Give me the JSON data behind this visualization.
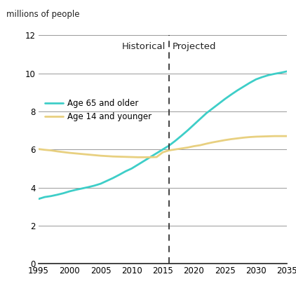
{
  "ylabel": "millions of people",
  "xlim": [
    1995,
    2035
  ],
  "ylim": [
    0,
    12
  ],
  "xticks": [
    1995,
    2000,
    2005,
    2010,
    2015,
    2020,
    2025,
    2030,
    2035
  ],
  "yticks": [
    0,
    2,
    4,
    6,
    8,
    10,
    12
  ],
  "divider_x": 2016,
  "historical_label": "Historical",
  "projected_label": "Projected",
  "line1_label": "Age 65 and older",
  "line1_color": "#3ecec8",
  "line2_label": "Age 14 and younger",
  "line2_color": "#e8d080",
  "line1_x": [
    1995,
    1996,
    1997,
    1998,
    1999,
    2000,
    2001,
    2002,
    2003,
    2004,
    2005,
    2006,
    2007,
    2008,
    2009,
    2010,
    2011,
    2012,
    2013,
    2014,
    2015,
    2016,
    2017,
    2018,
    2019,
    2020,
    2021,
    2022,
    2023,
    2024,
    2025,
    2026,
    2027,
    2028,
    2029,
    2030,
    2031,
    2032,
    2033,
    2034,
    2035
  ],
  "line1_y": [
    3.4,
    3.5,
    3.55,
    3.62,
    3.7,
    3.8,
    3.88,
    3.95,
    4.02,
    4.1,
    4.2,
    4.35,
    4.5,
    4.67,
    4.85,
    5.0,
    5.2,
    5.4,
    5.6,
    5.8,
    6.0,
    6.2,
    6.45,
    6.72,
    7.0,
    7.3,
    7.6,
    7.9,
    8.15,
    8.4,
    8.65,
    8.88,
    9.1,
    9.3,
    9.5,
    9.68,
    9.8,
    9.9,
    9.97,
    10.03,
    10.1
  ],
  "line2_x": [
    1995,
    1996,
    1997,
    1998,
    1999,
    2000,
    2001,
    2002,
    2003,
    2004,
    2005,
    2006,
    2007,
    2008,
    2009,
    2010,
    2011,
    2012,
    2013,
    2014,
    2015,
    2016,
    2017,
    2018,
    2019,
    2020,
    2021,
    2022,
    2023,
    2024,
    2025,
    2026,
    2027,
    2028,
    2029,
    2030,
    2031,
    2032,
    2033,
    2034,
    2035
  ],
  "line2_y": [
    6.02,
    5.98,
    5.95,
    5.9,
    5.86,
    5.82,
    5.79,
    5.76,
    5.73,
    5.7,
    5.67,
    5.65,
    5.63,
    5.62,
    5.61,
    5.6,
    5.59,
    5.59,
    5.59,
    5.6,
    5.85,
    5.95,
    6.0,
    6.05,
    6.1,
    6.17,
    6.22,
    6.3,
    6.37,
    6.43,
    6.49,
    6.54,
    6.58,
    6.62,
    6.65,
    6.67,
    6.68,
    6.69,
    6.7,
    6.7,
    6.7
  ],
  "background_color": "#ffffff",
  "grid_color": "#999999",
  "line_width": 2.0,
  "legend_fontsize": 8.5,
  "tick_fontsize": 8.5,
  "ylabel_fontsize": 8.5,
  "annotation_fontsize": 9.5
}
